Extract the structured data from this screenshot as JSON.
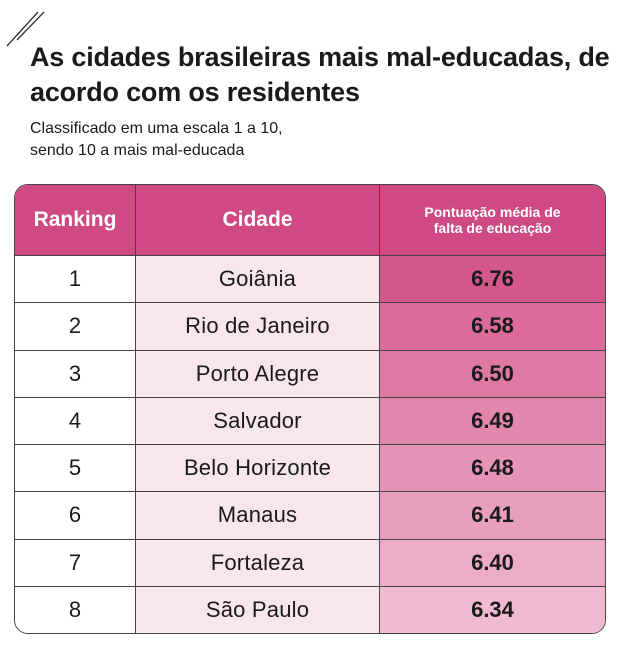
{
  "title": "As cidades brasileiras mais mal-educadas, de acordo com os residentes",
  "subtitle_line1": "Classificado em uma escala 1 a 10,",
  "subtitle_line2": "sendo 10 a mais mal-educada",
  "table": {
    "headers": [
      "Ranking",
      "Cidade",
      "Pontuação média de falta de educação"
    ],
    "header_color": "#cf4a84",
    "rows": [
      {
        "rank": "1",
        "city": "Goiânia",
        "score": "6.76",
        "color": "#d4578c"
      },
      {
        "rank": "2",
        "city": "Rio de Janeiro",
        "score": "6.58",
        "color": "#da6b9a"
      },
      {
        "rank": "3",
        "city": "Porto Alegre",
        "score": "6.50",
        "color": "#de79a3"
      },
      {
        "rank": "4",
        "city": "Salvador",
        "score": "6.49",
        "color": "#e186ac"
      },
      {
        "rank": "5",
        "city": "Belo Horizonte",
        "score": "6.48",
        "color": "#e593b6"
      },
      {
        "rank": "6",
        "city": "Manaus",
        "score": "6.41",
        "color": "#e89fbe"
      },
      {
        "rank": "7",
        "city": "Fortaleza",
        "score": "6.40",
        "color": "#ecacc7"
      },
      {
        "rank": "8",
        "city": "São Paulo",
        "score": "6.34",
        "color": "#efb9d0"
      }
    ]
  },
  "chart_data": {
    "type": "table",
    "title": "As cidades brasileiras mais mal-educadas, de acordo com os residentes",
    "subtitle": "Classificado em uma escala 1 a 10, sendo 10 a mais mal-educada",
    "columns": [
      "Ranking",
      "Cidade",
      "Pontuação média de falta de educação"
    ],
    "categories": [
      "Goiânia",
      "Rio de Janeiro",
      "Porto Alegre",
      "Salvador",
      "Belo Horizonte",
      "Manaus",
      "Fortaleza",
      "São Paulo"
    ],
    "ranks": [
      1,
      2,
      3,
      4,
      5,
      6,
      7,
      8
    ],
    "values": [
      6.76,
      6.58,
      6.5,
      6.49,
      6.48,
      6.41,
      6.4,
      6.34
    ]
  }
}
